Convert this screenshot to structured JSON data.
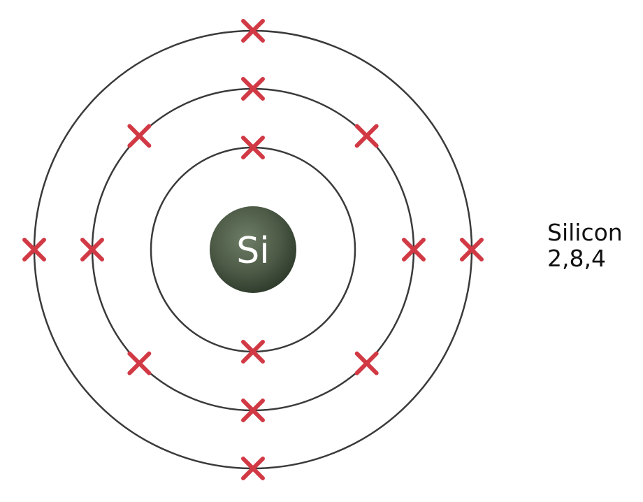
{
  "nucleus": {
    "symbol": "Si",
    "color": "#4c5a46"
  },
  "shells": [
    {
      "electrons": 2
    },
    {
      "electrons": 8
    },
    {
      "electrons": 4
    }
  ],
  "caption": {
    "element_name": "Silicon",
    "configuration": "2,8,4"
  },
  "colors": {
    "electron": "#d13a45",
    "orbit": "#3a3a3a"
  }
}
